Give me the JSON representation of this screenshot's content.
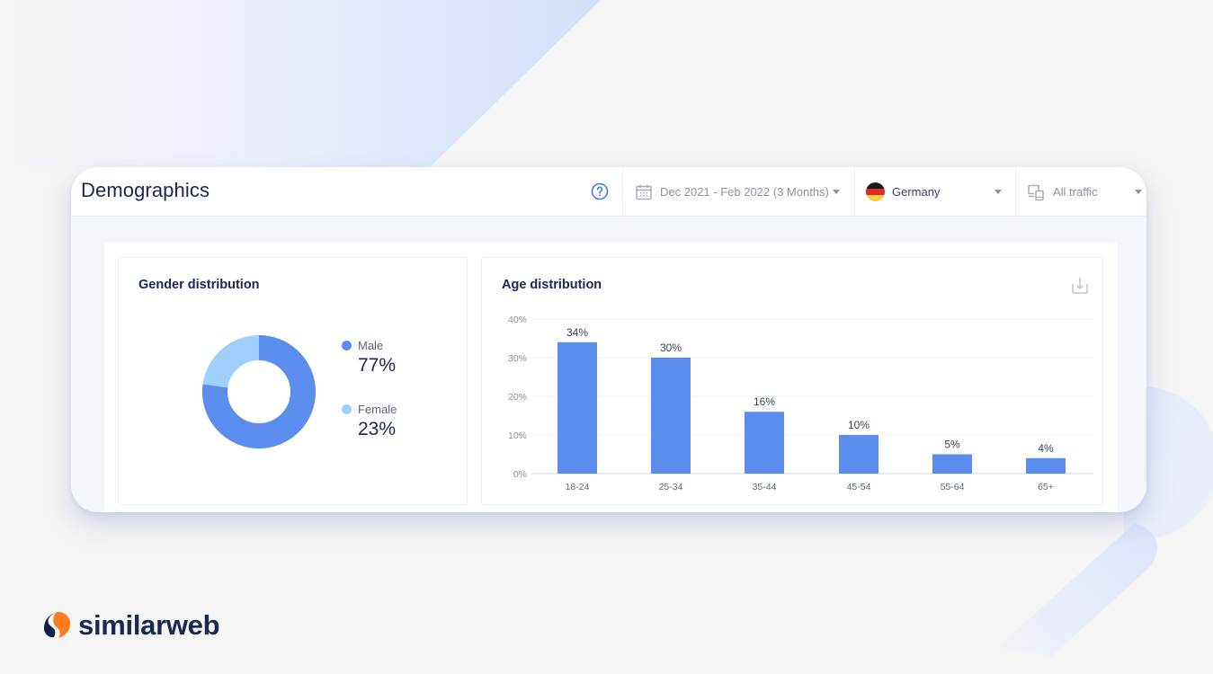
{
  "header": {
    "title": "Demographics",
    "help_icon": "question-circle-icon"
  },
  "filters": {
    "date_range": {
      "icon": "calendar-icon",
      "label": "Dec 2021 - Feb 2022 (3 Months)"
    },
    "country": {
      "icon": "germany-flag-icon",
      "label": "Germany"
    },
    "traffic": {
      "icon": "devices-icon",
      "label": "All traffic"
    }
  },
  "gender_card": {
    "title": "Gender distribution",
    "legend": [
      {
        "label": "Male",
        "value": "77%",
        "color": "#5b8def"
      },
      {
        "label": "Female",
        "value": "23%",
        "color": "#9fd0fb"
      }
    ]
  },
  "age_card": {
    "title": "Age distribution",
    "download_icon": "download-icon"
  },
  "brand": {
    "name": "similarweb"
  },
  "colors": {
    "bar": "#5b8def",
    "male": "#5b8def",
    "female": "#9fd0fb",
    "text_dark": "#1b2653",
    "panel_bg": "#f3f6fb"
  },
  "chart_data": [
    {
      "type": "pie",
      "title": "Gender distribution",
      "categories": [
        "Male",
        "Female"
      ],
      "values": [
        77,
        23
      ],
      "unit": "%",
      "donut": true,
      "legend_position": "right"
    },
    {
      "type": "bar",
      "title": "Age distribution",
      "categories": [
        "18-24",
        "25-34",
        "35-44",
        "45-54",
        "55-64",
        "65+"
      ],
      "values": [
        34,
        30,
        16,
        10,
        5,
        4
      ],
      "value_labels": [
        "34%",
        "30%",
        "16%",
        "10%",
        "5%",
        "4%"
      ],
      "xlabel": "",
      "ylabel": "",
      "yticks": [
        "0%",
        "10%",
        "20%",
        "30%",
        "40%"
      ],
      "ylim": [
        0,
        40
      ],
      "grid": true,
      "legend": false
    }
  ]
}
